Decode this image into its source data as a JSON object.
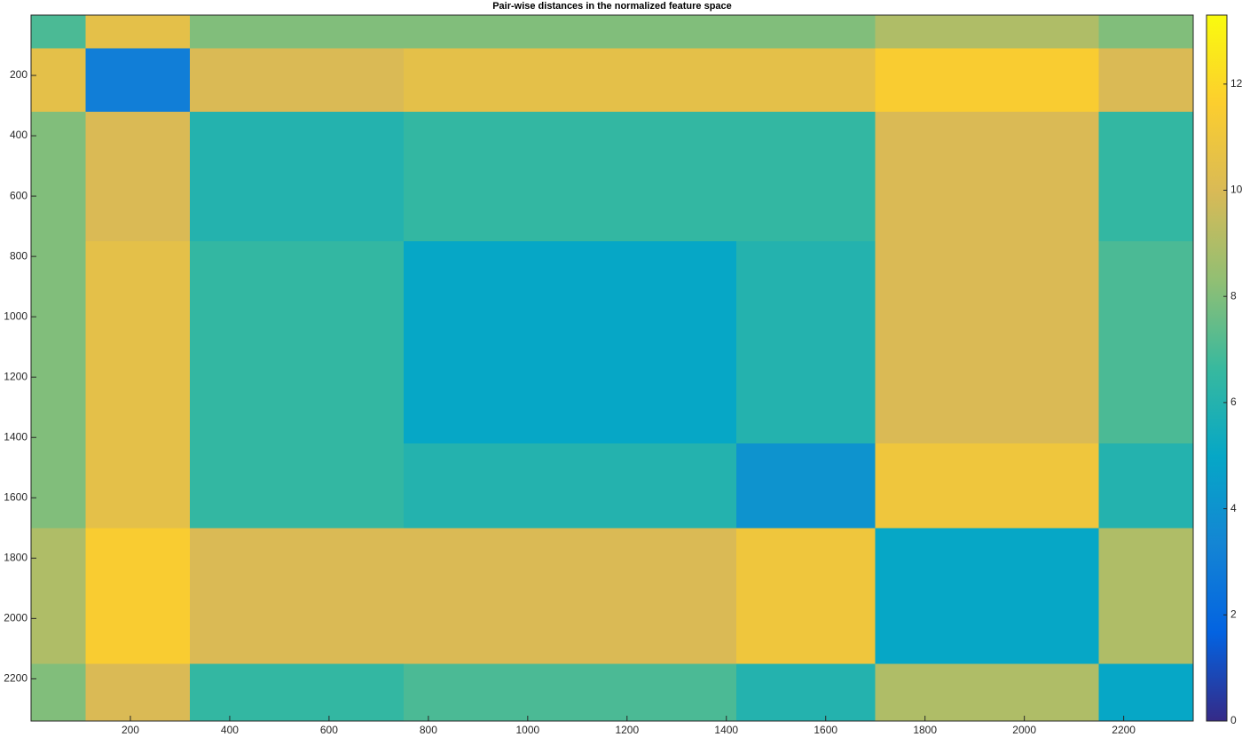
{
  "chart_data": {
    "type": "heatmap",
    "title": "Pair-wise distances in the normalized feature space",
    "bins": [
      0,
      110,
      320,
      750,
      1420,
      1700,
      2150,
      2340
    ],
    "values": [
      [
        7,
        10.5,
        8,
        8,
        8,
        9,
        8
      ],
      [
        10.5,
        3,
        10,
        10.5,
        10.5,
        11.5,
        10
      ],
      [
        8,
        10,
        6,
        6.5,
        6.5,
        10,
        6.5
      ],
      [
        8,
        10.5,
        6.5,
        5,
        6,
        10,
        7
      ],
      [
        8,
        10.5,
        6.5,
        6,
        4,
        11,
        6
      ],
      [
        9,
        11.5,
        10,
        10,
        11,
        5,
        9
      ],
      [
        8,
        10,
        6.5,
        7,
        6,
        9,
        5
      ]
    ],
    "xlim": [
      0,
      2340
    ],
    "ylim": [
      0,
      2340
    ],
    "y_reversed": true,
    "xticks": [
      200,
      400,
      600,
      800,
      1000,
      1200,
      1400,
      1600,
      1800,
      2000,
      2200
    ],
    "yticks": [
      200,
      400,
      600,
      800,
      1000,
      1200,
      1400,
      1600,
      1800,
      2000,
      2200
    ],
    "colormap": "parula",
    "colorbar_lim": [
      0,
      13.3
    ],
    "colorbar_ticks": [
      0,
      2,
      4,
      6,
      8,
      10,
      12
    ]
  }
}
